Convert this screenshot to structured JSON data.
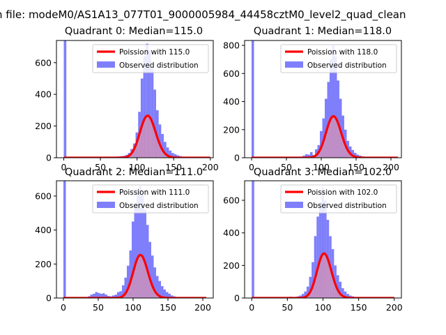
{
  "suptitle": "n file: modeM0/AS1A13_077T01_9000005984_44458cztM0_level2_quad_clean",
  "colors": {
    "hist": "#7f7ffb",
    "poisson": "#ff0000",
    "poisson_fill": "#f59a9a",
    "axis": "#000000"
  },
  "chart_data": [
    {
      "type": "bar",
      "title": "Quadrant 0: Median=115.0",
      "median": 115.0,
      "xlim": [
        -10,
        204
      ],
      "ylim": [
        0,
        740
      ],
      "xticks": [
        0,
        50,
        100,
        150,
        200
      ],
      "yticks": [
        0,
        200,
        400,
        600
      ],
      "legend": {
        "placement": "top-right",
        "line_label": "Poission with 115.0",
        "hist_label": "Observed distribution"
      },
      "bin_width": 3.5,
      "zero_bin": 760,
      "bins_x": [
        49,
        52.5,
        56,
        59.5,
        63,
        66.5,
        70,
        73.5,
        77,
        80.5,
        84,
        87.5,
        91,
        94.5,
        98,
        101.5,
        105,
        108.5,
        112,
        115.5,
        119,
        122.5,
        126,
        129.5,
        133,
        136.5,
        140,
        143.5,
        147,
        150.5,
        154,
        157.5,
        161,
        164.5,
        168,
        171.5
      ],
      "values": [
        2,
        2,
        3,
        3,
        3,
        4,
        6,
        8,
        10,
        12,
        18,
        30,
        55,
        90,
        160,
        290,
        500,
        640,
        720,
        680,
        560,
        430,
        300,
        210,
        150,
        100,
        65,
        45,
        30,
        22,
        15,
        10,
        6,
        4,
        2,
        1
      ],
      "poisson": {
        "lambda": 115.0,
        "total": 7130,
        "x_range": [
          0,
          200
        ]
      }
    },
    {
      "type": "bar",
      "title": "Quadrant 1: Median=118.0",
      "median": 118.0,
      "xlim": [
        -10,
        215
      ],
      "ylim": [
        0,
        835
      ],
      "xticks": [
        0,
        50,
        100,
        150,
        200
      ],
      "yticks": [
        0,
        200,
        400,
        600,
        800
      ],
      "legend": {
        "placement": "top-right",
        "line_label": "Poission with 118.0",
        "hist_label": "Observed distribution"
      },
      "bin_width": 3.5,
      "zero_bin": 900,
      "bins_x": [
        49,
        52.5,
        56,
        59.5,
        63,
        66.5,
        70,
        73.5,
        77,
        80.5,
        84,
        87.5,
        91,
        94.5,
        98,
        101.5,
        105,
        108.5,
        112,
        115.5,
        119,
        122.5,
        126,
        129.5,
        133,
        136.5,
        140,
        143.5,
        147,
        150.5,
        154,
        157.5,
        161,
        164.5,
        168,
        171.5
      ],
      "values": [
        2,
        3,
        3,
        3,
        4,
        6,
        8,
        15,
        25,
        22,
        40,
        20,
        60,
        90,
        190,
        280,
        420,
        540,
        700,
        800,
        720,
        550,
        420,
        300,
        200,
        120,
        80,
        55,
        35,
        22,
        15,
        10,
        5,
        3,
        2,
        1
      ],
      "poisson": {
        "lambda": 118.0,
        "total": 8050,
        "x_range": [
          0,
          210
        ]
      }
    },
    {
      "type": "bar",
      "title": "Quadrant 2: Median=111.0",
      "median": 111.0,
      "xlim": [
        -10,
        215
      ],
      "ylim": [
        0,
        690
      ],
      "xticks": [
        0,
        50,
        100,
        150,
        200
      ],
      "yticks": [
        0,
        200,
        400,
        600
      ],
      "legend": {
        "placement": "top-right",
        "line_label": "Poission with 111.0",
        "hist_label": "Observed distribution"
      },
      "bin_width": 3.5,
      "zero_bin": 720,
      "bins_x": [
        35,
        38.5,
        42,
        45.5,
        49,
        52.5,
        56,
        59.5,
        63,
        66.5,
        70,
        73.5,
        77,
        80.5,
        84,
        87.5,
        91,
        94.5,
        98,
        101.5,
        105,
        108.5,
        112,
        115.5,
        119,
        122.5,
        126,
        129.5,
        133,
        136.5,
        140,
        143.5,
        147,
        150.5,
        154,
        157.5,
        161,
        164.5,
        168,
        171.5
      ],
      "values": [
        10,
        20,
        25,
        35,
        30,
        25,
        28,
        20,
        12,
        10,
        15,
        20,
        35,
        40,
        75,
        120,
        190,
        280,
        450,
        550,
        640,
        660,
        610,
        520,
        430,
        330,
        250,
        180,
        130,
        100,
        70,
        50,
        35,
        25,
        15,
        10,
        6,
        4,
        2,
        1
      ],
      "poisson": {
        "lambda": 111.0,
        "total": 6690,
        "x_range": [
          0,
          205
        ]
      }
    },
    {
      "type": "bar",
      "title": "Quadrant 3: Median=102.0",
      "median": 102.0,
      "xlim": [
        -10,
        210
      ],
      "ylim": [
        0,
        720
      ],
      "xticks": [
        0,
        50,
        100,
        150,
        200
      ],
      "yticks": [
        0,
        200,
        400,
        600
      ],
      "legend": {
        "placement": "top-right",
        "line_label": "Poission with 102.0",
        "hist_label": "Observed distribution"
      },
      "bin_width": 3.5,
      "zero_bin": 760,
      "bins_x": [
        42,
        45.5,
        49,
        52.5,
        56,
        59.5,
        63,
        66.5,
        70,
        73.5,
        77,
        80.5,
        84,
        87.5,
        91,
        94.5,
        98,
        101.5,
        105,
        108.5,
        112,
        115.5,
        119,
        122.5,
        126,
        129.5,
        133,
        136.5,
        140,
        143.5,
        147,
        150.5,
        154,
        157.5,
        161
      ],
      "values": [
        2,
        3,
        5,
        8,
        6,
        5,
        10,
        15,
        25,
        40,
        70,
        130,
        220,
        380,
        500,
        590,
        680,
        600,
        480,
        380,
        300,
        200,
        140,
        100,
        60,
        40,
        25,
        15,
        10,
        6,
        4,
        3,
        2,
        1,
        1
      ],
      "poisson": {
        "lambda": 102.0,
        "total": 6920,
        "x_range": [
          0,
          200
        ]
      }
    }
  ]
}
